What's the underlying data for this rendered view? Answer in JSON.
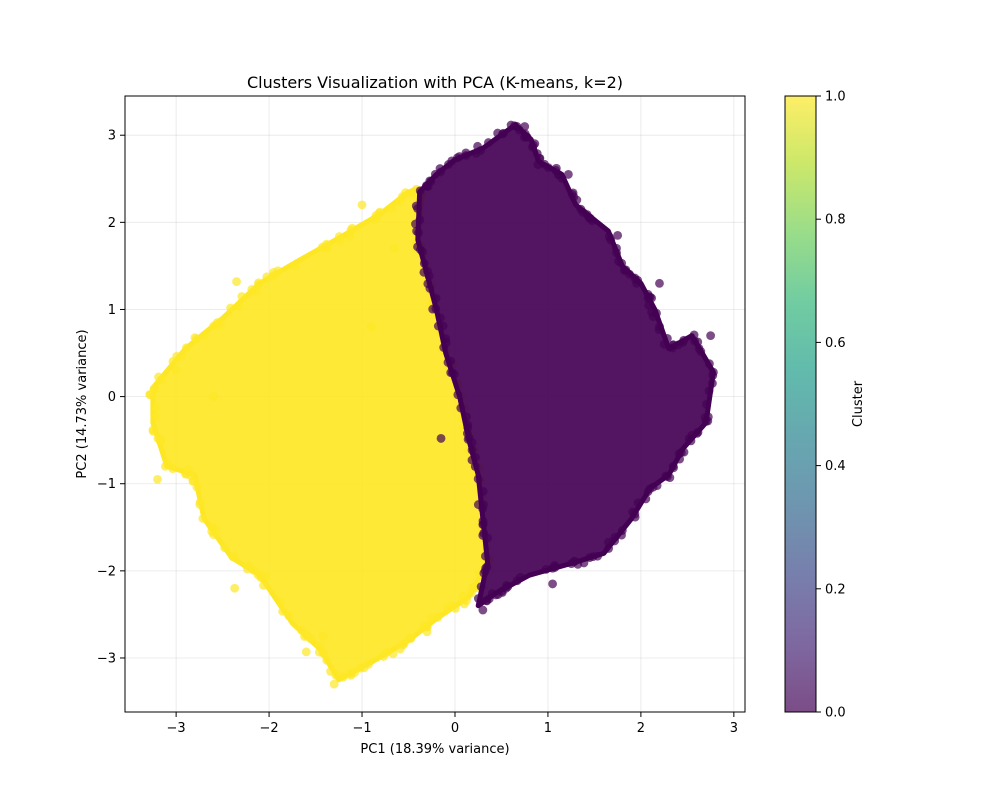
{
  "chart_data": {
    "type": "scatter",
    "title": "Clusters Visualization with PCA (K-means, k=2)",
    "xlabel": "PC1 (18.39% variance)",
    "ylabel": "PC2 (14.73% variance)",
    "xlim": [
      -3.55,
      3.12
    ],
    "ylim": [
      -3.62,
      3.45
    ],
    "x_ticks": [
      -3,
      -2,
      -1,
      0,
      1,
      2,
      3
    ],
    "x_tick_labels": [
      "−3",
      "−2",
      "−1",
      "0",
      "1",
      "2",
      "3"
    ],
    "y_ticks": [
      -3,
      -2,
      -1,
      0,
      1,
      2,
      3
    ],
    "y_tick_labels": [
      "−3",
      "−2",
      "−1",
      "0",
      "1",
      "2",
      "3"
    ],
    "grid": true,
    "marker_alpha": 0.7,
    "colormap": "viridis",
    "colorbar": {
      "label": "Cluster",
      "range": [
        0.0,
        1.0
      ],
      "ticks": [
        0.0,
        0.2,
        0.4,
        0.6,
        0.8,
        1.0
      ],
      "tick_labels": [
        "0.0",
        "0.2",
        "0.4",
        "0.6",
        "0.8",
        "1.0"
      ],
      "stops": [
        "#440154",
        "#482878",
        "#3e4989",
        "#31688e",
        "#26828e",
        "#1f9e89",
        "#35b779",
        "#6ece58",
        "#b5de2b",
        "#fde725"
      ]
    },
    "series": [
      {
        "cluster": 1,
        "color": "#fde725",
        "boundary": [
          [
            -3.25,
            0.1
          ],
          [
            -2.9,
            0.55
          ],
          [
            -2.5,
            0.9
          ],
          [
            -2.1,
            1.3
          ],
          [
            -1.7,
            1.55
          ],
          [
            -1.2,
            1.85
          ],
          [
            -0.8,
            2.1
          ],
          [
            -0.5,
            2.35
          ],
          [
            -0.35,
            2.35
          ],
          [
            -0.4,
            1.8
          ],
          [
            -0.3,
            1.4
          ],
          [
            -0.2,
            1.0
          ],
          [
            -0.1,
            0.5
          ],
          [
            0.05,
            0.0
          ],
          [
            0.15,
            -0.5
          ],
          [
            0.25,
            -0.9
          ],
          [
            0.3,
            -1.4
          ],
          [
            0.35,
            -1.9
          ],
          [
            0.15,
            -2.3
          ],
          [
            -0.2,
            -2.55
          ],
          [
            -0.5,
            -2.8
          ],
          [
            -0.9,
            -3.05
          ],
          [
            -1.25,
            -3.25
          ],
          [
            -1.45,
            -2.9
          ],
          [
            -1.75,
            -2.6
          ],
          [
            -2.1,
            -2.05
          ],
          [
            -2.4,
            -1.85
          ],
          [
            -2.7,
            -1.4
          ],
          [
            -2.8,
            -0.9
          ],
          [
            -3.1,
            -0.8
          ],
          [
            -3.25,
            -0.3
          ]
        ],
        "outliers": [
          [
            -2.35,
            1.32
          ],
          [
            -1.0,
            2.2
          ],
          [
            -2.37,
            -2.2
          ],
          [
            -1.6,
            -2.93
          ],
          [
            -1.3,
            -3.3
          ],
          [
            -3.2,
            -0.95
          ],
          [
            -0.9,
            0.8
          ],
          [
            -0.65,
            1.7
          ],
          [
            -1.42,
            -2.75
          ],
          [
            -1.12,
            -3.2
          ],
          [
            0.1,
            -2.38
          ],
          [
            -0.3,
            -2.7
          ],
          [
            -2.6,
            0.0
          ],
          [
            -3.0,
            0.3
          ]
        ]
      },
      {
        "cluster": 0,
        "color": "#440154",
        "boundary": [
          [
            -0.38,
            2.35
          ],
          [
            -0.2,
            2.55
          ],
          [
            0.0,
            2.72
          ],
          [
            0.3,
            2.85
          ],
          [
            0.65,
            3.12
          ],
          [
            0.82,
            2.95
          ],
          [
            0.9,
            2.7
          ],
          [
            1.15,
            2.55
          ],
          [
            1.3,
            2.2
          ],
          [
            1.65,
            1.9
          ],
          [
            1.8,
            1.5
          ],
          [
            2.0,
            1.3
          ],
          [
            2.15,
            1.0
          ],
          [
            2.3,
            0.55
          ],
          [
            2.55,
            0.7
          ],
          [
            2.78,
            0.28
          ],
          [
            2.7,
            -0.3
          ],
          [
            2.45,
            -0.6
          ],
          [
            2.3,
            -0.9
          ],
          [
            2.1,
            -1.05
          ],
          [
            1.9,
            -1.4
          ],
          [
            1.6,
            -1.8
          ],
          [
            1.3,
            -1.9
          ],
          [
            0.8,
            -2.05
          ],
          [
            0.45,
            -2.25
          ],
          [
            0.25,
            -2.4
          ],
          [
            0.35,
            -1.9
          ],
          [
            0.3,
            -1.4
          ],
          [
            0.25,
            -0.9
          ],
          [
            0.15,
            -0.5
          ],
          [
            0.05,
            0.0
          ],
          [
            -0.1,
            0.5
          ],
          [
            -0.2,
            1.0
          ],
          [
            -0.3,
            1.4
          ],
          [
            -0.4,
            1.8
          ]
        ],
        "outliers": [
          [
            1.05,
            -2.15
          ],
          [
            2.75,
            0.7
          ],
          [
            2.25,
            0.6
          ],
          [
            1.75,
            1.85
          ],
          [
            0.75,
            3.1
          ],
          [
            1.22,
            2.55
          ],
          [
            2.2,
            1.3
          ],
          [
            2.78,
            0.28
          ],
          [
            -0.15,
            -0.48
          ],
          [
            0.55,
            -2.2
          ],
          [
            0.3,
            -2.45
          ],
          [
            2.72,
            -0.28
          ]
        ]
      }
    ]
  }
}
